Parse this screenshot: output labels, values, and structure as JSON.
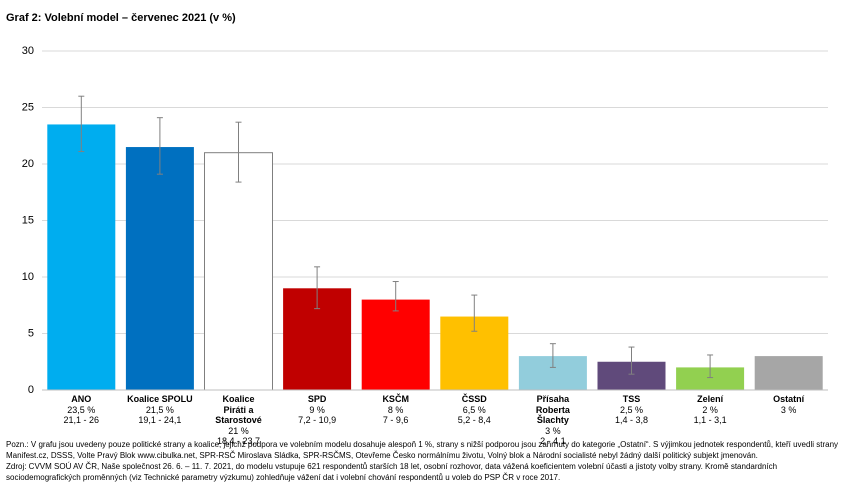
{
  "chart_data": {
    "type": "bar",
    "title": "Graf 2: Volební model – červenec 2021 (v %)",
    "categories": [
      "ANO",
      "Koalice SPOLU",
      "Koalice Piráti a Starostové",
      "SPD",
      "KSČM",
      "ČSSD",
      "Přísaha Roberta Šlachty",
      "TSS",
      "Zelení",
      "Ostatní"
    ],
    "values": [
      23.5,
      21.5,
      21,
      9,
      8,
      6.5,
      3,
      2.5,
      2,
      3
    ],
    "value_labels": [
      "23,5 %",
      "21,5 %",
      "21 %",
      "9 %",
      "8 %",
      "6,5 %",
      "3 %",
      "2,5 %",
      "2 %",
      "3 %"
    ],
    "low": [
      21.1,
      19.1,
      18.4,
      7.2,
      7,
      5.2,
      2,
      1.4,
      1.1,
      null
    ],
    "high": [
      26,
      24.1,
      23.7,
      10.9,
      9.6,
      8.4,
      4.1,
      3.8,
      3.1,
      null
    ],
    "range_labels": [
      "21,1 - 26",
      "19,1 - 24,1",
      "18,4 - 23,7",
      "7,2 - 10,9",
      "7 - 9,6",
      "5,2 - 8,4",
      "2 - 4,1",
      "1,4 - 3,8",
      "1,1 - 3,1",
      null
    ],
    "colors": [
      "#00adef",
      "#0070c0",
      "#ffffff",
      "#c00000",
      "#ff0000",
      "#ffc000",
      "#92cddc",
      "#604a7b",
      "#92d050",
      "#a6a6a6"
    ],
    "ylim": [
      0,
      30
    ],
    "yticks": [
      0,
      5,
      10,
      15,
      20,
      25,
      30
    ],
    "grid": true,
    "notes": [
      "Pozn.: V grafu jsou uvedeny pouze politické strany a koalice, jejichž podpora ve volebním modelu dosahuje alespoň 1 %, strany s nižší podporou jsou zahrnuty do kategorie „Ostatní“. S výjimkou jednotek respondentů, kteří uvedli strany Manifest.cz, DSSS, Volte Pravý Blok www.cibulka.net, SPR-RSČ Miroslava Sládka, SPR-RSČMS, Otevřeme Česko normálnímu životu, Volný blok a Národní socialisté nebyl žádný další politický subjekt jmenován.",
      "Zdroj: CVVM SOÚ AV ČR, Naše společnost 26. 6. – 11. 7. 2021, do modelu vstupuje 621 respondentů starších 18 let, osobní rozhovor, data vážená koeficientem volební účasti a jistoty volby strany. Kromě standardních sociodemografických proměnných (viz Technické parametry výzkumu) zohledňuje vážení dat i volební chování respondentů u voleb do PSP ČR v roce 2017."
    ]
  }
}
